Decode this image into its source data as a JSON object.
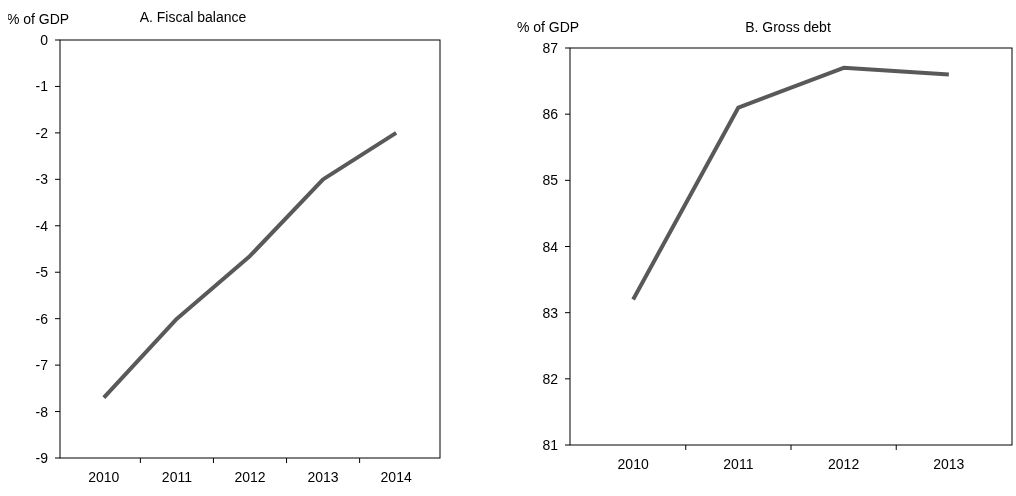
{
  "chart_data": [
    {
      "type": "line",
      "title": "A. Fiscal balance",
      "ylabel": "% of GDP",
      "categories": [
        "2010",
        "2011",
        "2012",
        "2013",
        "2014"
      ],
      "series": [
        {
          "color": "#595959",
          "values": [
            -7.7,
            -6.0,
            -4.65,
            -3.0,
            -2.0
          ]
        }
      ],
      "ylim": [
        -9,
        0
      ],
      "yticks": [
        -9,
        -8,
        -7,
        -6,
        -5,
        -4,
        -3,
        -2,
        -1,
        0
      ],
      "grid": false,
      "marker": "none",
      "line_style": "solid"
    },
    {
      "type": "line",
      "title": "B. Gross debt",
      "ylabel": "% of GDP",
      "categories": [
        "2010",
        "2011",
        "2012",
        "2013"
      ],
      "series": [
        {
          "color": "#595959",
          "values": [
            83.2,
            86.1,
            86.7,
            86.6
          ]
        }
      ],
      "ylim": [
        81,
        87
      ],
      "yticks": [
        81,
        82,
        83,
        84,
        85,
        86,
        87
      ],
      "grid": false,
      "marker": "none",
      "line_style": "solid"
    }
  ]
}
